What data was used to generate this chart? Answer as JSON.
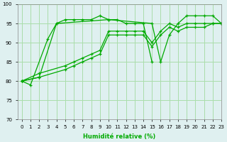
{
  "title": "",
  "xlabel": "Humidité relative (%)",
  "ylabel": "",
  "background_color": "#dff0f0",
  "grid_color": "#aaddaa",
  "line_color": "#00aa00",
  "xlim": [
    -0.5,
    23
  ],
  "ylim": [
    70,
    100
  ],
  "yticks": [
    70,
    75,
    80,
    85,
    90,
    95,
    100
  ],
  "xticks": [
    0,
    1,
    2,
    3,
    4,
    5,
    6,
    7,
    8,
    9,
    10,
    11,
    12,
    13,
    14,
    15,
    16,
    17,
    18,
    19,
    20,
    21,
    22,
    23
  ],
  "series": [
    {
      "x": [
        0,
        1,
        3,
        4,
        5,
        6,
        7,
        8,
        9,
        10,
        11,
        12,
        13,
        14,
        15
      ],
      "y": [
        80,
        79,
        91,
        95,
        96,
        96,
        96,
        96,
        97,
        96,
        96,
        95,
        95,
        95,
        85
      ]
    },
    {
      "x": [
        0,
        2,
        4,
        10,
        15,
        16,
        17,
        18,
        19,
        20,
        21,
        22,
        23
      ],
      "y": [
        80,
        81,
        95,
        96,
        95,
        85,
        92,
        95,
        97,
        97,
        97,
        97,
        95
      ]
    },
    {
      "x": [
        0,
        2,
        5,
        6,
        7,
        8,
        9,
        10,
        11,
        12,
        13,
        14,
        15,
        16,
        17,
        18,
        19,
        20,
        21,
        22,
        23
      ],
      "y": [
        80,
        82,
        84,
        85,
        86,
        87,
        88,
        93,
        93,
        93,
        93,
        93,
        90,
        93,
        95,
        94,
        95,
        95,
        95,
        95,
        95
      ]
    },
    {
      "x": [
        0,
        2,
        5,
        6,
        7,
        8,
        9,
        10,
        11,
        12,
        13,
        14,
        15,
        16,
        17,
        18,
        19,
        20,
        21,
        22,
        23
      ],
      "y": [
        80,
        81,
        83,
        84,
        85,
        86,
        87,
        92,
        92,
        92,
        92,
        92,
        89,
        92,
        94,
        93,
        94,
        94,
        94,
        95,
        95
      ]
    }
  ]
}
